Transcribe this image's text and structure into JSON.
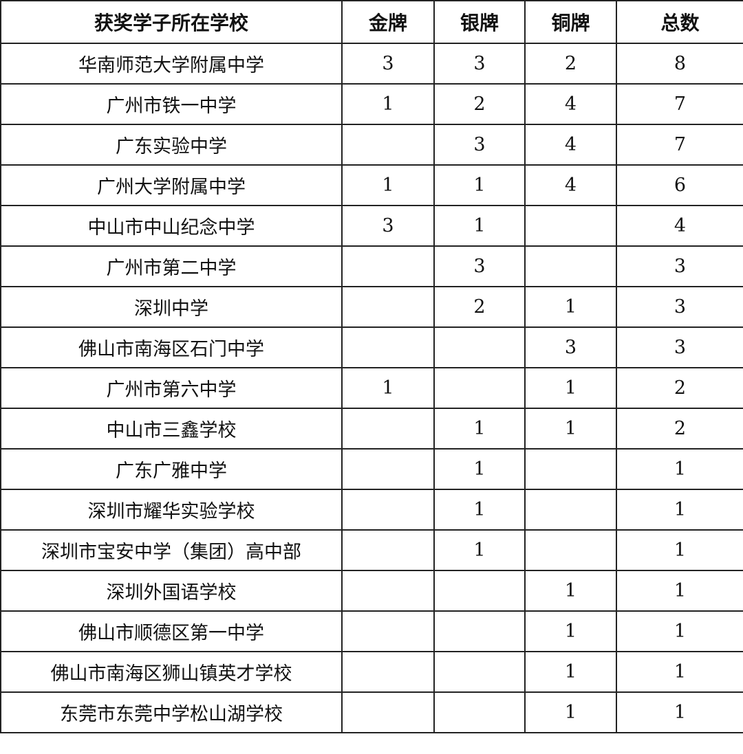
{
  "headers": [
    "获奖学子所在学校",
    "金牌",
    "银牌",
    "铜牌",
    "总数"
  ],
  "rows": [
    [
      "华南师范大学附属中学",
      "3",
      "3",
      "2",
      "8"
    ],
    [
      "广州市铁一中学",
      "1",
      "2",
      "4",
      "7"
    ],
    [
      "广东实验中学",
      "",
      "3",
      "4",
      "7"
    ],
    [
      "广州大学附属中学",
      "1",
      "1",
      "4",
      "6"
    ],
    [
      "中山市中山纪念中学",
      "3",
      "1",
      "",
      "4"
    ],
    [
      "广州市第二中学",
      "",
      "3",
      "",
      "3"
    ],
    [
      "深圳中学",
      "",
      "2",
      "1",
      "3"
    ],
    [
      "佛山市南海区石门中学",
      "",
      "",
      "3",
      "3"
    ],
    [
      "广州市第六中学",
      "1",
      "",
      "1",
      "2"
    ],
    [
      "中山市三鑫学校",
      "",
      "1",
      "1",
      "2"
    ],
    [
      "广东广雅中学",
      "",
      "1",
      "",
      "1"
    ],
    [
      "深圳市耀华实验学校",
      "",
      "1",
      "",
      "1"
    ],
    [
      "深圳市宝安中学（集团）高中部",
      "",
      "1",
      "",
      "1"
    ],
    [
      "深圳外国语学校",
      "",
      "",
      "1",
      "1"
    ],
    [
      "佛山市顺德区第一中学",
      "",
      "",
      "1",
      "1"
    ],
    [
      "佛山市南海区狮山镇英才学校",
      "",
      "",
      "1",
      "1"
    ],
    [
      "东莞市东莞中学松山湖学校",
      "",
      "",
      "1",
      "1"
    ]
  ]
}
